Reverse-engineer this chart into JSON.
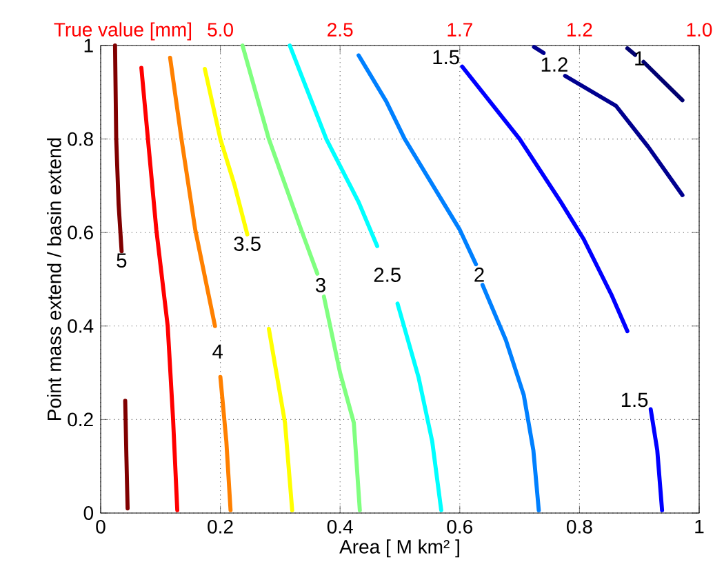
{
  "chart_data": {
    "type": "line",
    "xlabel": "Area [ M km² ]",
    "ylabel": "Point mass extend / basin extend",
    "annotations": [
      "True value [mm]",
      "5.0",
      "2.5",
      "1.7",
      "1.2",
      "1.0"
    ],
    "xlim": [
      0,
      1
    ],
    "ylim": [
      0,
      1
    ],
    "xticks": [
      0,
      0.2,
      0.4,
      0.6,
      0.8,
      1
    ],
    "yticks": [
      0,
      0.2,
      0.4,
      0.6,
      0.8,
      1
    ],
    "grid": true,
    "marker": "none",
    "line_style": "solid",
    "series": [
      {
        "name": "5",
        "color": "#800000",
        "x": [
          0.024,
          0.026,
          0.03,
          0.035,
          0.038,
          0.041,
          0.043,
          0.045
        ],
        "values": [
          1.0,
          0.8,
          0.66,
          0.56,
          null,
          0.24,
          0.12,
          0.01
        ]
      },
      {
        "color": "#ff0000",
        "x": [
          0.068,
          0.093,
          0.112,
          0.121,
          0.128
        ],
        "values": [
          0.952,
          0.606,
          0.4,
          0.2,
          0.006
        ]
      },
      {
        "name": "4",
        "color": "#ff8000",
        "x": [
          0.116,
          0.135,
          0.158,
          0.191,
          0.196,
          0.2,
          0.21,
          0.217
        ],
        "values": [
          0.974,
          0.8,
          0.606,
          0.4,
          null,
          0.291,
          0.153,
          0.006
        ]
      },
      {
        "name": "3.5",
        "color": "#ffff00",
        "x": [
          0.174,
          0.2,
          0.224,
          0.245,
          0.263,
          0.281,
          0.308,
          0.32
        ],
        "values": [
          0.95,
          0.8,
          0.7,
          0.596,
          null,
          0.394,
          0.193,
          0.006
        ]
      },
      {
        "name": "3",
        "color": "#80ff80",
        "x": [
          0.237,
          0.281,
          0.335,
          0.362,
          0.368,
          0.373,
          0.4,
          0.423,
          0.433
        ],
        "values": [
          1.0,
          0.8,
          0.606,
          0.512,
          null,
          0.463,
          0.3,
          0.193,
          0.006
        ]
      },
      {
        "name": "2.5",
        "color": "#00ffff",
        "x": [
          0.316,
          0.377,
          0.431,
          0.462,
          0.479,
          0.496,
          0.531,
          0.554,
          0.569
        ],
        "values": [
          1.0,
          0.8,
          0.665,
          0.571,
          null,
          0.448,
          0.291,
          0.153,
          0.006
        ]
      },
      {
        "name": "2",
        "color": "#0080ff",
        "x": [
          0.431,
          0.477,
          0.508,
          0.6,
          0.627,
          0.632,
          0.638,
          0.677,
          0.707,
          0.723,
          0.732
        ],
        "values": [
          0.979,
          0.881,
          0.8,
          0.606,
          0.532,
          null,
          0.488,
          0.37,
          0.252,
          0.134,
          0.006
        ]
      },
      {
        "name": "1.5",
        "color": "#0000ff",
        "x": [
          0.604,
          0.7,
          0.769,
          0.807,
          0.853,
          0.88
        ],
        "values": [
          0.955,
          0.8,
          0.665,
          0.586,
          0.468,
          0.389
        ]
      },
      {
        "name": "1.5",
        "color": "#0000ff",
        "x": [
          0.919,
          0.93,
          0.938
        ],
        "values": [
          0.222,
          0.134,
          0.006
        ]
      },
      {
        "name": "1.2",
        "color": "#00008f",
        "x": [
          0.724,
          0.74,
          0.758,
          0.776,
          0.861,
          0.915,
          0.972
        ],
        "values": [
          0.997,
          0.984,
          null,
          0.935,
          0.871,
          0.783,
          0.68
        ]
      },
      {
        "name": "1",
        "color": "#000070",
        "x": [
          0.88,
          0.893,
          0.899,
          0.907,
          0.972
        ],
        "values": [
          0.994,
          0.98,
          null,
          0.965,
          0.883
        ]
      }
    ]
  }
}
